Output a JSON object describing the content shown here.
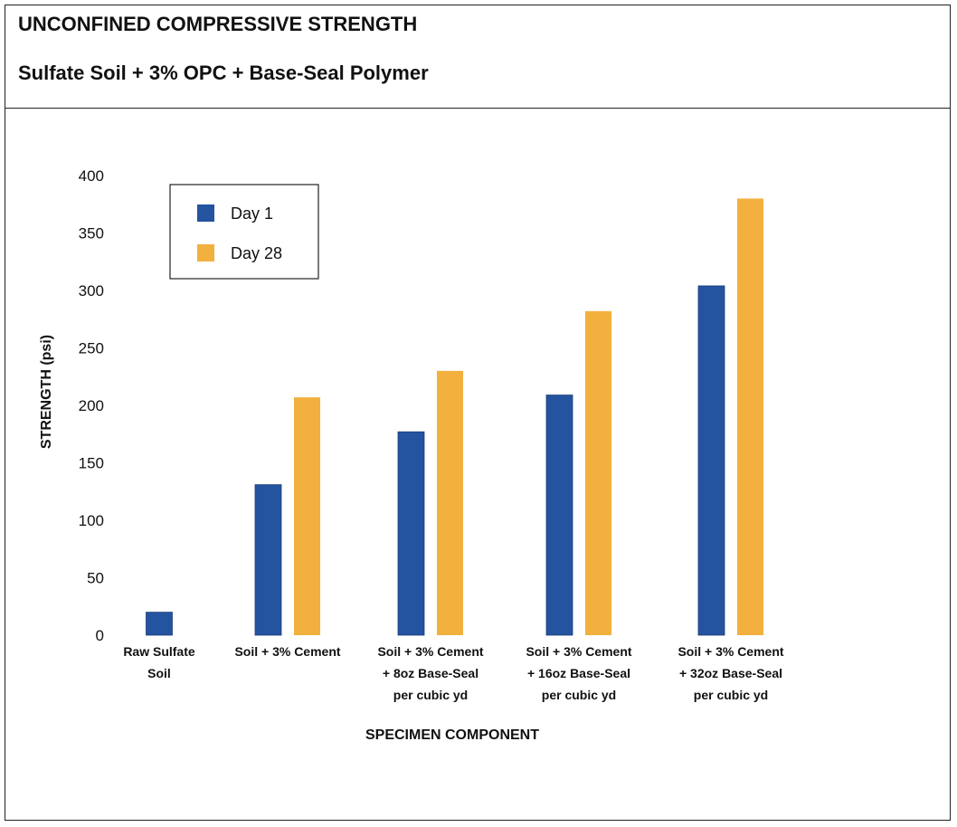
{
  "header": {
    "title": "UNCONFINED COMPRESSIVE STRENGTH",
    "subtitle": "Sulfate Soil + 3% OPC + Base-Seal Polymer"
  },
  "chart_data": {
    "type": "bar",
    "title": "UNCONFINED COMPRESSIVE STRENGTH",
    "subtitle": "Sulfate Soil + 3% OPC + Base-Seal Polymer",
    "xlabel": "SPECIMEN COMPONENT",
    "ylabel": "STRENGTH (psi)",
    "ylim": [
      0,
      400
    ],
    "yticks": [
      0,
      50,
      100,
      150,
      200,
      250,
      300,
      350,
      400
    ],
    "grid": false,
    "legend_position": "top-left",
    "categories": [
      [
        "Raw Sulfate",
        "Soil"
      ],
      [
        "Soil + 3% Cement"
      ],
      [
        "Soil + 3% Cement",
        "+ 8oz Base-Seal",
        "per cubic yd"
      ],
      [
        "Soil + 3% Cement",
        "+ 16oz Base-Seal",
        "per cubic yd"
      ],
      [
        "Soil + 3% Cement",
        "+ 32oz Base-Seal",
        "per cubic yd"
      ]
    ],
    "series": [
      {
        "name": "Day 1",
        "color": "#2453a0",
        "values": [
          20,
          131,
          177,
          209,
          304
        ]
      },
      {
        "name": "Day 28",
        "color": "#f2b03f",
        "values": [
          null,
          207,
          230,
          282,
          380
        ]
      }
    ]
  }
}
